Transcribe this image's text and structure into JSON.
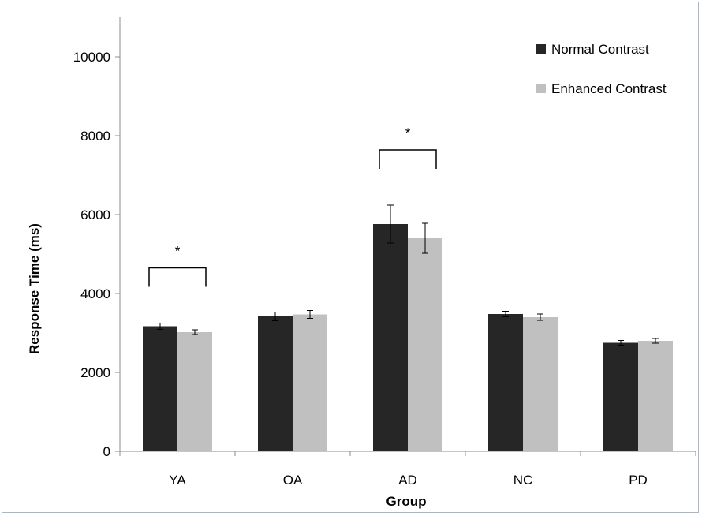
{
  "chart_data": {
    "type": "bar",
    "title": "",
    "xlabel": "Group",
    "ylabel": "Response Time (ms)",
    "ylim": [
      0,
      11000
    ],
    "yticks": [
      0,
      2000,
      4000,
      6000,
      8000,
      10000
    ],
    "categories": [
      "YA",
      "OA",
      "AD",
      "NC",
      "PD"
    ],
    "grid": false,
    "legend_position": "top-right",
    "series": [
      {
        "name": "Normal Contrast",
        "color": "#262626",
        "values": [
          3170,
          3420,
          5760,
          3480,
          2750
        ],
        "errors": [
          80,
          110,
          480,
          70,
          60
        ]
      },
      {
        "name": "Enhanced Contrast",
        "color": "#c0c0c0",
        "values": [
          3020,
          3470,
          5400,
          3400,
          2800
        ],
        "errors": [
          60,
          100,
          380,
          80,
          60
        ]
      }
    ],
    "annotations": [
      {
        "category": "YA",
        "text": "*",
        "type": "significance-bracket"
      },
      {
        "category": "AD",
        "text": "*",
        "type": "significance-bracket"
      }
    ]
  }
}
